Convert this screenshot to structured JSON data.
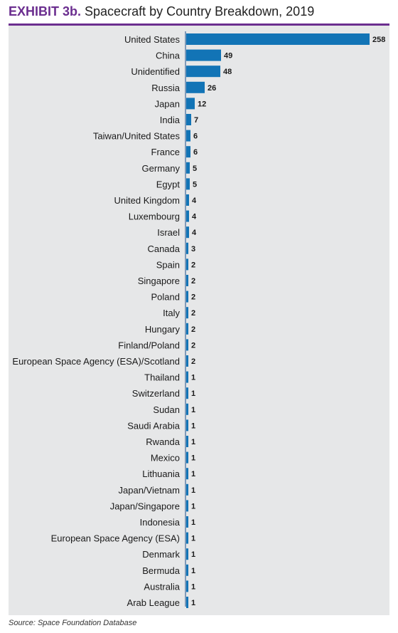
{
  "header": {
    "exhibit": "EXHIBIT 3b.",
    "title": "Spacecraft by Country Breakdown, 2019"
  },
  "source": "Source: Space Foundation Database",
  "colors": {
    "bar": "#1274b6",
    "accent": "#6b2e8f",
    "panel": "#e6e7e8",
    "axis": "#1a4f8a"
  },
  "chart_data": {
    "type": "bar",
    "orientation": "horizontal",
    "title": "Spacecraft by Country Breakdown, 2019",
    "categories": [
      "United States",
      "China",
      "Unidentified",
      "Russia",
      "Japan",
      "India",
      "Taiwan/United States",
      "France",
      "Germany",
      "Egypt",
      "United Kingdom",
      "Luxembourg",
      "Israel",
      "Canada",
      "Spain",
      "Singapore",
      "Poland",
      "Italy",
      "Hungary",
      "Finland/Poland",
      "European Space Agency (ESA)/Scotland",
      "Thailand",
      "Switzerland",
      "Sudan",
      "Saudi Arabia",
      "Rwanda",
      "Mexico",
      "Lithuania",
      "Japan/Vietnam",
      "Japan/Singapore",
      "Indonesia",
      "European Space Agency (ESA)",
      "Denmark",
      "Bermuda",
      "Australia",
      "Arab League"
    ],
    "values": [
      258,
      49,
      48,
      26,
      12,
      7,
      6,
      6,
      5,
      5,
      4,
      4,
      4,
      3,
      2,
      2,
      2,
      2,
      2,
      2,
      2,
      1,
      1,
      1,
      1,
      1,
      1,
      1,
      1,
      1,
      1,
      1,
      1,
      1,
      1,
      1
    ],
    "xlim": [
      0,
      258
    ],
    "grid": false,
    "legend": "none"
  }
}
